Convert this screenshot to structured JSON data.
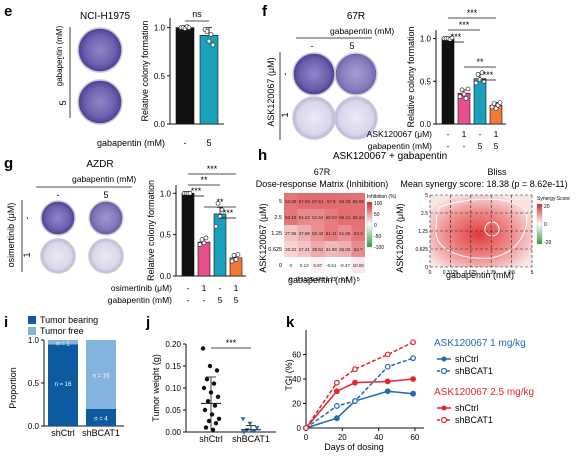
{
  "figure": {
    "panels": {
      "e": {
        "letter": "e",
        "title": "NCI-H1975",
        "drug_label": "gabapentin (mM)",
        "row_labels": [
          "-",
          "5"
        ],
        "ylabel": "Relative colony formation",
        "xlabel_row": "gabapentin (mM)",
        "x_ticks": [
          "-",
          "5"
        ],
        "sig": [
          "ns"
        ],
        "y_ticks": [
          "0.0",
          "0.5",
          "1.0"
        ]
      },
      "f": {
        "letter": "f",
        "title": "67R",
        "drug_label": "gabapentin (mM)",
        "col_labels": [
          "-",
          "5"
        ],
        "row_drug": "ASK120067 (μM)",
        "row_labels": [
          "-",
          "1"
        ],
        "ylabel": "Relative colony formation",
        "x_rows": [
          {
            "label": "ASK120067 (μM)",
            "ticks": [
              "-",
              "1",
              "-",
              "1"
            ]
          },
          {
            "label": "gabapentin (mM)",
            "ticks": [
              "-",
              "-",
              "5",
              "5"
            ]
          }
        ],
        "sig": [
          "***",
          "***",
          "***",
          "**",
          "***"
        ],
        "y_ticks": [
          "0.0",
          "0.5",
          "1.0"
        ]
      },
      "g": {
        "letter": "g",
        "title": "AZDR",
        "drug_label": "gabapentin (mM)",
        "col_labels": [
          "-",
          "5"
        ],
        "row_drug": "osimertinib (μM)",
        "row_labels": [
          "-",
          "1"
        ],
        "ylabel": "Relative colony formation",
        "x_rows": [
          {
            "label": "osimertinib (μM)",
            "ticks": [
              "-",
              "1",
              "-",
              "1"
            ]
          },
          {
            "label": "gabapentin (mM)",
            "ticks": [
              "-",
              "-",
              "5",
              "5"
            ]
          }
        ],
        "sig": [
          "***",
          "**",
          "***",
          "**",
          "***"
        ],
        "y_ticks": [
          "0.0",
          "0.5",
          "1.0"
        ]
      },
      "h": {
        "letter": "h",
        "title": "ASK120067 + gabapentin",
        "left_title": "67R",
        "left_subtitle": "Dose-response Matrix (Inhibition)",
        "left_ylabel": "ASK120067 (μM)",
        "left_xlabel": "gabapentin (mM)",
        "legend_title": "Inhibition (%)",
        "legend_ticks": [
          "100",
          "50",
          "0",
          "-50",
          "-100"
        ],
        "right_title": "Bliss",
        "right_subtitle": "Mean synergy score: 18.38 (p = 8.62e-11)",
        "right_ylabel": "ASK120067 (μM)",
        "right_xlabel": "gabapentin (mM)",
        "synergy_title": "Synergy Score",
        "synergy_ticks": [
          "20",
          "0",
          "-20"
        ],
        "x_ticks": [
          "0",
          "0.3125",
          "0.625",
          "1.25",
          "2.5",
          "5"
        ],
        "y_ticks": [
          "5",
          "2.5",
          "1.25",
          "0.625",
          "0"
        ]
      },
      "i": {
        "letter": "i",
        "legend": [
          "Tumor bearing",
          "Tumor free"
        ],
        "ylabel": "Proportion",
        "categories": [
          "shCtrl",
          "shBCAT1"
        ],
        "bar_labels": [
          "n = 1",
          "n = 16",
          "n = 16",
          "n = 4"
        ],
        "y_ticks": [
          "0.0",
          "0.5",
          "1.0"
        ]
      },
      "j": {
        "letter": "j",
        "ylabel": "Tumor weight (g)",
        "categories": [
          "shCtrl",
          "shBCAT1"
        ],
        "sig": "***",
        "y_ticks": [
          "0.00",
          "0.05",
          "0.10",
          "0.15",
          "0.20"
        ]
      },
      "k": {
        "letter": "k",
        "ylabel": "TGI (%)",
        "xlabel": "Days of dosing",
        "x_ticks": [
          "0",
          "20",
          "40",
          "60"
        ],
        "y_ticks": [
          "0",
          "20",
          "40",
          "60"
        ],
        "legend_group1": "ASK120067 1 mg/kg",
        "legend_group2": "ASK120067 2.5 mg/kg",
        "legend_items": [
          "shCtrl",
          "shBCAT1",
          "shCtrl",
          "shBCAT1"
        ]
      }
    },
    "colors": {
      "black": "#111111",
      "pink": "#e8508c",
      "teal": "#1aa0b8",
      "orange": "#ef7a37",
      "blue": "#1f6bb0",
      "lightblue": "#84b3de",
      "navy": "#0e5aa0",
      "red": "#e2262c",
      "well": "#6a5fae"
    }
  },
  "chart_data": [
    {
      "panel": "e",
      "type": "bar",
      "categories": [
        "-",
        "5"
      ],
      "values": [
        1.0,
        0.92
      ],
      "errors": [
        0.02,
        0.08
      ],
      "points": [
        [
          1.0,
          1.0,
          0.99,
          1.01,
          1.0
        ],
        [
          0.98,
          0.96,
          0.86,
          0.93,
          0.82
        ]
      ],
      "ylim": [
        0,
        1.1
      ],
      "ylabel": "Relative colony formation"
    },
    {
      "panel": "f",
      "type": "bar",
      "categories": [
        "-/-",
        "1/-",
        "-/5",
        "1/5"
      ],
      "values": [
        1.0,
        0.36,
        0.53,
        0.22
      ],
      "errors": [
        0.02,
        0.04,
        0.05,
        0.03
      ],
      "points": [
        [
          1.0,
          1.0,
          1.0,
          0.99,
          1.01
        ],
        [
          0.32,
          0.4,
          0.35,
          0.3,
          0.41
        ],
        [
          0.48,
          0.58,
          0.52,
          0.6,
          0.5
        ],
        [
          0.2,
          0.24,
          0.18,
          0.22,
          0.25
        ]
      ],
      "ylim": [
        0,
        1.1
      ],
      "ylabel": "Relative colony formation"
    },
    {
      "panel": "g",
      "type": "bar",
      "categories": [
        "-/-",
        "1/-",
        "-/5",
        "1/5"
      ],
      "values": [
        1.0,
        0.41,
        0.75,
        0.22
      ],
      "errors": [
        0.02,
        0.04,
        0.08,
        0.04
      ],
      "points": [
        [
          1.0,
          1.0,
          1.0,
          1.0
        ],
        [
          0.38,
          0.44,
          0.4,
          0.46
        ],
        [
          0.6,
          0.88,
          0.72,
          0.8
        ],
        [
          0.18,
          0.25,
          0.2,
          0.26
        ]
      ],
      "ylim": [
        0,
        1.1
      ],
      "ylabel": "Relative colony formation"
    },
    {
      "panel": "h",
      "type": "heatmap",
      "x": [
        "0",
        "0.3125",
        "0.625",
        "1.25",
        "2.5",
        "5"
      ],
      "y": [
        "5",
        "2.5",
        "1.25",
        "0.625",
        "0"
      ],
      "values": [
        [
          63.89,
          67.06,
          67.61,
          67.6,
          66.33,
          65.09
        ],
        [
          63.19,
          54.22,
          52.64,
          60.03,
          66.41,
          66.24
        ],
        [
          27.96,
          37.98,
          50.43,
          61.11,
          51.65,
          63.3
        ],
        [
          20.22,
          27.31,
          39.51,
          31.89,
          36.02,
          52.7
        ],
        [
          0,
          0.13,
          5.97,
          -0.61,
          -0.47,
          10.06
        ]
      ],
      "xlabel": "gabapentin (mM)",
      "ylabel": "ASK120067 (μM)"
    },
    {
      "panel": "i",
      "type": "bar",
      "categories": [
        "shCtrl",
        "shBCAT1"
      ],
      "series": [
        {
          "name": "Tumor bearing",
          "values": [
            0.95,
            0.2
          ]
        },
        {
          "name": "Tumor free",
          "values": [
            0.05,
            0.8
          ]
        }
      ],
      "ylim": [
        0,
        1.0
      ],
      "ylabel": "Proportion"
    },
    {
      "panel": "j",
      "type": "scatter",
      "categories": [
        "shCtrl",
        "shBCAT1"
      ],
      "means": [
        0.065,
        0.005
      ],
      "sd": [
        0.06,
        0.01
      ],
      "points": [
        [
          0.19,
          0.15,
          0.14,
          0.12,
          0.11,
          0.1,
          0.09,
          0.08,
          0.07,
          0.06,
          0.05,
          0.04,
          0.03,
          0.025,
          0.02,
          0.01,
          0.005
        ],
        [
          0.03,
          0.02,
          0.01,
          0.005,
          0.002,
          0.0
        ]
      ],
      "ylim": [
        0,
        0.2
      ],
      "ylabel": "Tumor weight (g)"
    },
    {
      "panel": "k",
      "type": "line",
      "x": [
        0,
        17,
        27,
        45,
        59
      ],
      "series": [
        {
          "name": "shCtrl",
          "group": "ASK120067 1 mg/kg",
          "values": [
            0,
            8,
            22,
            30,
            28
          ]
        },
        {
          "name": "shBCAT1",
          "group": "ASK120067 1 mg/kg",
          "values": [
            0,
            18,
            22,
            50,
            57
          ]
        },
        {
          "name": "shCtrl",
          "group": "ASK120067 2.5 mg/kg",
          "values": [
            0,
            30,
            37,
            38,
            40
          ]
        },
        {
          "name": "shBCAT1",
          "group": "ASK120067 2.5 mg/kg",
          "values": [
            0,
            37,
            48,
            60,
            70
          ]
        }
      ],
      "xlim": [
        0,
        65
      ],
      "ylim": [
        0,
        80
      ],
      "xlabel": "Days of dosing",
      "ylabel": "TGI (%)"
    }
  ]
}
